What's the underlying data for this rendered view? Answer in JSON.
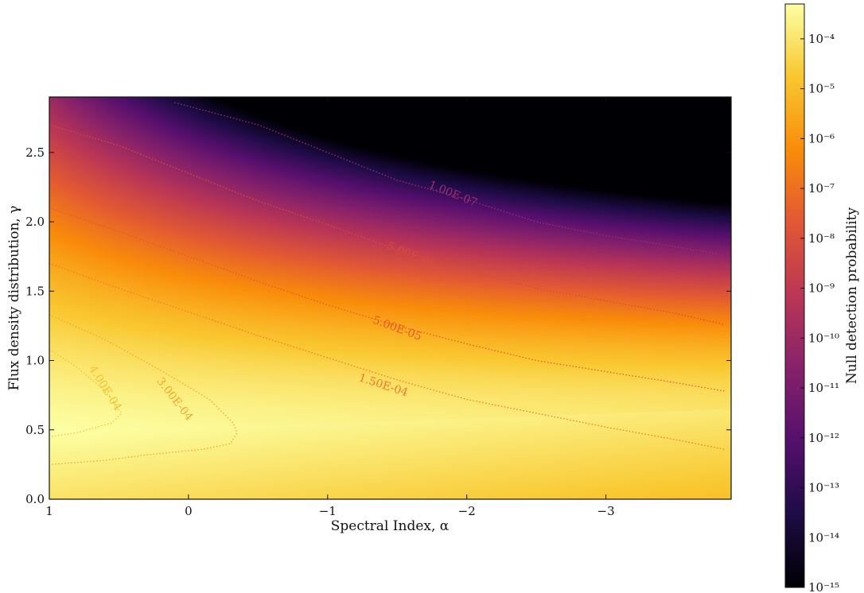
{
  "chart_data": {
    "type": "heatmap",
    "xlabel": "Spectral Index, α",
    "ylabel": "Flux density distribution, γ",
    "xlim": [
      1,
      -3.9
    ],
    "ylim": [
      0,
      2.9
    ],
    "x_ticks": [
      {
        "value": 1,
        "label": "1"
      },
      {
        "value": 0,
        "label": "0"
      },
      {
        "value": -1,
        "label": "−1"
      },
      {
        "value": -2,
        "label": "−2"
      },
      {
        "value": -3,
        "label": "−3"
      }
    ],
    "y_ticks": [
      {
        "value": 0.0,
        "label": "0.0"
      },
      {
        "value": 0.5,
        "label": "0.5"
      },
      {
        "value": 1.0,
        "label": "1.0"
      },
      {
        "value": 1.5,
        "label": "1.5"
      },
      {
        "value": 2.0,
        "label": "2.0"
      },
      {
        "value": 2.5,
        "label": "2.5"
      }
    ],
    "colorbar": {
      "label": "Null detection probability",
      "scale": "log",
      "colormap": "inferno",
      "range": [
        1e-15,
        0.0005
      ],
      "ticks": [
        {
          "exp": -15,
          "label": "10⁻¹⁵"
        },
        {
          "exp": -14,
          "label": "10⁻¹⁴"
        },
        {
          "exp": -13,
          "label": "10⁻¹³"
        },
        {
          "exp": -12,
          "label": "10⁻¹²"
        },
        {
          "exp": -11,
          "label": "10⁻¹¹"
        },
        {
          "exp": -10,
          "label": "10⁻¹⁰"
        },
        {
          "exp": -9,
          "label": "10⁻⁹"
        },
        {
          "exp": -8,
          "label": "10⁻⁸"
        },
        {
          "exp": -7,
          "label": "10⁻⁷"
        },
        {
          "exp": -6,
          "label": "10⁻⁶"
        },
        {
          "exp": -5,
          "label": "10⁻⁵"
        },
        {
          "exp": -4,
          "label": "10⁻⁴"
        }
      ]
    },
    "contours": [
      {
        "level": 1e-07,
        "label": "1.00E-07",
        "color": "#9b2f6e",
        "label_at": {
          "x": -1.9,
          "y": 2.2,
          "angle": 22
        },
        "points": [
          [
            0.1,
            2.86
          ],
          [
            -0.5,
            2.7
          ],
          [
            -1.0,
            2.5
          ],
          [
            -1.5,
            2.3
          ],
          [
            -2.0,
            2.16
          ],
          [
            -2.5,
            2.0
          ],
          [
            -3.0,
            1.9
          ],
          [
            -3.5,
            1.82
          ],
          [
            -3.85,
            1.76
          ]
        ]
      },
      {
        "level": 5e-06,
        "label": "5.00E-06",
        "color": "#d94a3a",
        "label_at": {
          "x": -1.6,
          "y": 1.76,
          "angle": 22
        },
        "points": [
          [
            1.0,
            2.7
          ],
          [
            0.5,
            2.55
          ],
          [
            0.0,
            2.35
          ],
          [
            -0.5,
            2.15
          ],
          [
            -1.0,
            1.98
          ],
          [
            -1.5,
            1.8
          ],
          [
            -2.0,
            1.65
          ],
          [
            -2.5,
            1.52
          ],
          [
            -3.0,
            1.43
          ],
          [
            -3.5,
            1.34
          ],
          [
            -3.85,
            1.26
          ]
        ]
      },
      {
        "level": 5e-05,
        "label": "5.00E-05",
        "color": "#e8572e",
        "label_at": {
          "x": -1.5,
          "y": 1.23,
          "angle": 20
        },
        "points": [
          [
            1.0,
            2.1
          ],
          [
            0.5,
            1.93
          ],
          [
            0.0,
            1.75
          ],
          [
            -0.5,
            1.57
          ],
          [
            -1.0,
            1.4
          ],
          [
            -1.5,
            1.25
          ],
          [
            -2.0,
            1.12
          ],
          [
            -2.5,
            1.0
          ],
          [
            -3.0,
            0.92
          ],
          [
            -3.5,
            0.84
          ],
          [
            -3.85,
            0.78
          ]
        ]
      },
      {
        "level": 0.00015,
        "label": "1.50E-04",
        "color": "#f07a2c",
        "label_at": {
          "x": -1.4,
          "y": 0.82,
          "angle": 18
        },
        "points": [
          [
            1.0,
            1.7
          ],
          [
            0.5,
            1.52
          ],
          [
            0.0,
            1.35
          ],
          [
            -0.5,
            1.18
          ],
          [
            -1.0,
            1.02
          ],
          [
            -1.5,
            0.86
          ],
          [
            -2.0,
            0.72
          ],
          [
            -2.5,
            0.62
          ],
          [
            -3.0,
            0.52
          ],
          [
            -3.5,
            0.43
          ],
          [
            -3.85,
            0.36
          ]
        ]
      },
      {
        "level": 0.0003,
        "label": "3.00E-04",
        "color": "#f6a52a",
        "label_at": {
          "x": 0.1,
          "y": 0.72,
          "angle": 52
        },
        "points": [
          [
            1.0,
            1.33
          ],
          [
            0.6,
            1.15
          ],
          [
            0.2,
            0.93
          ],
          [
            -0.15,
            0.72
          ],
          [
            -0.32,
            0.55
          ],
          [
            -0.35,
            0.48
          ],
          [
            -0.3,
            0.4
          ],
          [
            -0.1,
            0.36
          ],
          [
            0.3,
            0.32
          ],
          [
            0.6,
            0.28
          ],
          [
            1.0,
            0.25
          ]
        ]
      },
      {
        "level": 0.0004,
        "label": "4.00E-04",
        "color": "#f2c12e",
        "label_at": {
          "x": 0.6,
          "y": 0.8,
          "angle": 58
        },
        "points": [
          [
            1.0,
            1.08
          ],
          [
            0.8,
            0.95
          ],
          [
            0.6,
            0.78
          ],
          [
            0.48,
            0.62
          ],
          [
            0.55,
            0.55
          ],
          [
            0.8,
            0.48
          ],
          [
            1.0,
            0.45
          ]
        ]
      }
    ]
  }
}
